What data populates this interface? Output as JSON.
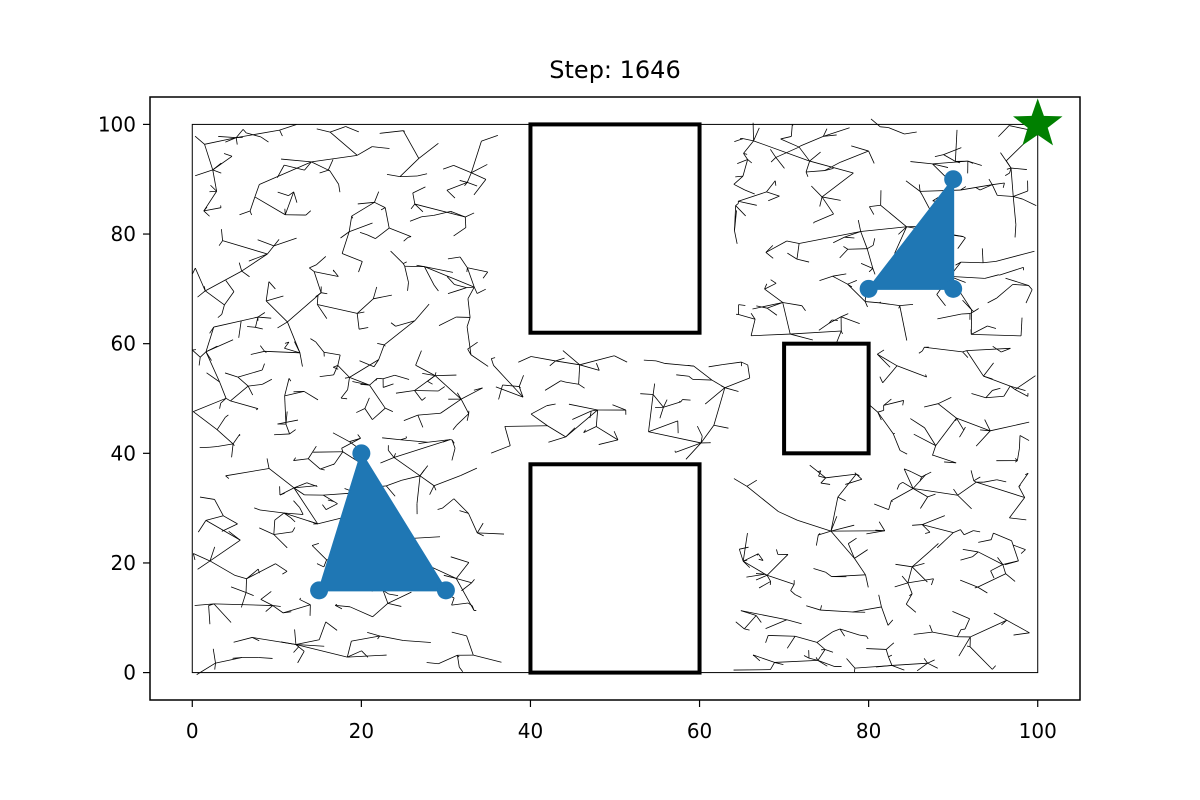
{
  "chart_data": {
    "type": "scatter",
    "title": "Step: 1646",
    "xlabel": "",
    "ylabel": "",
    "xlim": [
      -5,
      105
    ],
    "ylim": [
      -5,
      105
    ],
    "xticks": [
      0,
      20,
      40,
      60,
      80,
      100
    ],
    "yticks": [
      0,
      20,
      40,
      60,
      80,
      100
    ],
    "tick_labels": {
      "x": [
        "0",
        "20",
        "40",
        "60",
        "80",
        "100"
      ],
      "y": [
        "0",
        "20",
        "40",
        "60",
        "80",
        "100"
      ]
    },
    "grid": false,
    "boundary": {
      "x": [
        0,
        100
      ],
      "y": [
        0,
        100
      ]
    },
    "obstacles": [
      {
        "x0": 40,
        "y0": 62,
        "x1": 60,
        "y1": 100
      },
      {
        "x0": 40,
        "y0": 0,
        "x1": 60,
        "y1": 38
      },
      {
        "x0": 70,
        "y0": 40,
        "x1": 80,
        "y1": 60
      }
    ],
    "triangles": [
      {
        "vertices": [
          [
            20,
            40
          ],
          [
            15,
            15
          ],
          [
            30,
            15
          ]
        ],
        "color": "#1f77b4"
      },
      {
        "vertices": [
          [
            90,
            90
          ],
          [
            80,
            70
          ],
          [
            90,
            70
          ]
        ],
        "color": "#1f77b4"
      }
    ],
    "goal": {
      "x": 100,
      "y": 100,
      "marker": "star",
      "color": "#008000"
    },
    "tree": {
      "color": "#000000",
      "regions": [
        {
          "x": [
            0,
            35
          ],
          "y": [
            0,
            100
          ]
        },
        {
          "x": [
            35,
            66
          ],
          "y": [
            40,
            58
          ]
        },
        {
          "x": [
            64,
            100
          ],
          "y": [
            0,
            38
          ]
        },
        {
          "x": [
            64,
            100
          ],
          "y": [
            60,
            100
          ]
        },
        {
          "x": [
            81,
            100
          ],
          "y": [
            38,
            60
          ]
        }
      ]
    }
  }
}
